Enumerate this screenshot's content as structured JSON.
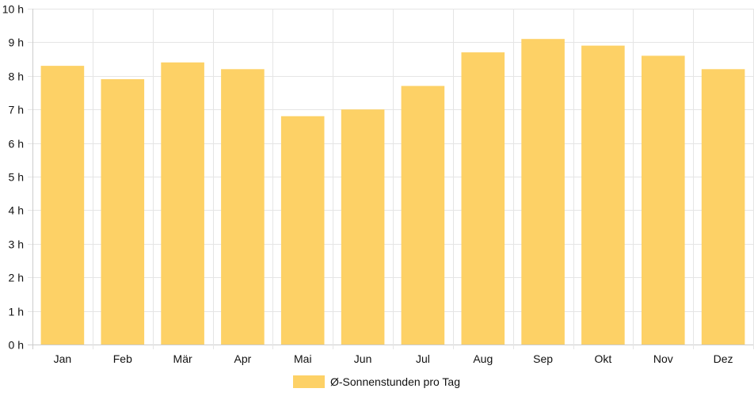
{
  "chart_data": {
    "type": "bar",
    "categories": [
      "Jan",
      "Feb",
      "Mär",
      "Apr",
      "Mai",
      "Jun",
      "Jul",
      "Aug",
      "Sep",
      "Okt",
      "Nov",
      "Dez"
    ],
    "series": [
      {
        "name": "Ø-Sonnenstunden pro Tag",
        "values": [
          8.3,
          7.9,
          8.4,
          8.2,
          6.8,
          7.0,
          7.7,
          8.7,
          9.1,
          8.9,
          8.6,
          8.2
        ],
        "color": "#fdd166"
      }
    ],
    "yticks": [
      "0 h",
      "1 h",
      "2 h",
      "3 h",
      "4 h",
      "5 h",
      "6 h",
      "7 h",
      "8 h",
      "9 h",
      "10 h"
    ],
    "ylim": [
      0,
      10
    ],
    "grid": true,
    "legend_position": "bottom"
  }
}
